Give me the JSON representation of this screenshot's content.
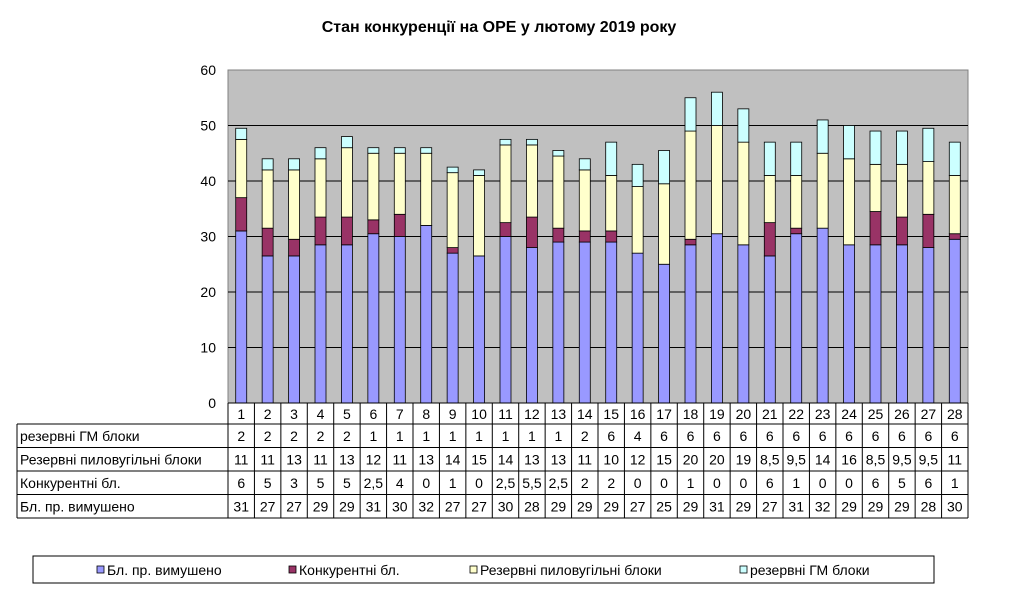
{
  "chart_data": {
    "type": "bar",
    "stacked": true,
    "title": "Стан конкуренції на ОРЕ  у лютому 2019 року",
    "categories": [
      "1",
      "2",
      "3",
      "4",
      "5",
      "6",
      "7",
      "8",
      "9",
      "10",
      "11",
      "12",
      "13",
      "14",
      "15",
      "16",
      "17",
      "18",
      "19",
      "20",
      "21",
      "22",
      "23",
      "24",
      "25",
      "26",
      "27",
      "28"
    ],
    "ylim": [
      0,
      60
    ],
    "yticks": [
      "0",
      "10",
      "20",
      "30",
      "40",
      "50",
      "60"
    ],
    "grid": true,
    "legend_position": "bottom",
    "series": [
      {
        "name": "Бл. пр. вимушено",
        "color": "#9999FF",
        "values": [
          31,
          26.5,
          26.5,
          28.5,
          28.5,
          30.5,
          30,
          32,
          27,
          26.5,
          30,
          28,
          29,
          29,
          29,
          27,
          25,
          28.5,
          30.5,
          28.5,
          26.5,
          30.5,
          31.5,
          28.5,
          28.5,
          28.5,
          28,
          29.5
        ],
        "labels": [
          "31",
          "27",
          "27",
          "29",
          "29",
          "31",
          "30",
          "32",
          "27",
          "27",
          "30",
          "28",
          "29",
          "29",
          "29",
          "27",
          "25",
          "29",
          "31",
          "29",
          "27",
          "31",
          "32",
          "29",
          "29",
          "29",
          "28",
          "30"
        ]
      },
      {
        "name": "Конкурентні  бл.",
        "color": "#993366",
        "values": [
          6,
          5,
          3,
          5,
          5,
          2.5,
          4,
          0,
          1,
          0,
          2.5,
          5.5,
          2.5,
          2,
          2,
          0,
          0,
          1,
          0,
          0,
          6,
          1,
          0,
          0,
          6,
          5,
          6,
          1
        ],
        "labels": [
          "6",
          "5",
          "3",
          "5",
          "5",
          "2,5",
          "4",
          "0",
          "1",
          "0",
          "2,5",
          "5,5",
          "2,5",
          "2",
          "2",
          "0",
          "0",
          "1",
          "0",
          "0",
          "6",
          "1",
          "0",
          "0",
          "6",
          "5",
          "6",
          "1"
        ]
      },
      {
        "name": "Резервні пиловугільні  блоки",
        "color": "#FFFFCC",
        "values": [
          10.5,
          10.5,
          12.5,
          10.5,
          12.5,
          12,
          11,
          13,
          13.5,
          14.5,
          14,
          13,
          13,
          11,
          10,
          12,
          14.5,
          19.5,
          19.5,
          18.5,
          8.5,
          9.5,
          13.5,
          15.5,
          8.5,
          9.5,
          9.5,
          10.5
        ],
        "labels": [
          "11",
          "11",
          "13",
          "11",
          "13",
          "12",
          "11",
          "13",
          "14",
          "15",
          "14",
          "13",
          "13",
          "11",
          "10",
          "12",
          "15",
          "20",
          "20",
          "19",
          "8,5",
          "9,5",
          "14",
          "16",
          "8,5",
          "9,5",
          "9,5",
          "11"
        ]
      },
      {
        "name": "резервні ГМ блоки",
        "color": "#CCFFFF",
        "values": [
          2,
          2,
          2,
          2,
          2,
          1,
          1,
          1,
          1,
          1,
          1,
          1,
          1,
          2,
          6,
          4,
          6,
          6,
          6,
          6,
          6,
          6,
          6,
          6,
          6,
          6,
          6,
          6
        ],
        "labels": [
          "2",
          "2",
          "2",
          "2",
          "2",
          "1",
          "1",
          "1",
          "1",
          "1",
          "1",
          "1",
          "1",
          "2",
          "6",
          "4",
          "6",
          "6",
          "6",
          "6",
          "6",
          "6",
          "6",
          "6",
          "6",
          "6",
          "6",
          "6"
        ]
      }
    ],
    "table_row_order": [
      3,
      2,
      1,
      0
    ]
  }
}
